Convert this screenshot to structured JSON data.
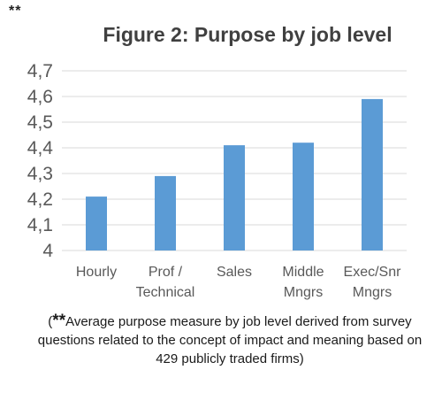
{
  "corner_mark": "**",
  "chart_data": {
    "type": "bar",
    "title": "Figure 2: Purpose by job level",
    "categories": [
      [
        "Hourly"
      ],
      [
        "Prof /",
        "Technical"
      ],
      [
        "Sales"
      ],
      [
        "Middle",
        "Mngrs"
      ],
      [
        "Exec/Snr",
        "Mngrs"
      ]
    ],
    "values": [
      4.21,
      4.29,
      4.41,
      4.42,
      4.59
    ],
    "ylim": [
      4,
      4.7
    ],
    "yticks": [
      "4",
      "4,1",
      "4,2",
      "4,3",
      "4,4",
      "4,5",
      "4,6",
      "4,7"
    ],
    "grid": true,
    "bar_color": "#5b9bd5",
    "grid_color": "#d9d9d9",
    "xlabel": "",
    "ylabel": ""
  },
  "footnote": {
    "open": "(",
    "stars": "**",
    "text": "Average purpose measure by job level  derived from survey questions related to the concept of impact and meaning based on 429 publicly traded firms)"
  }
}
